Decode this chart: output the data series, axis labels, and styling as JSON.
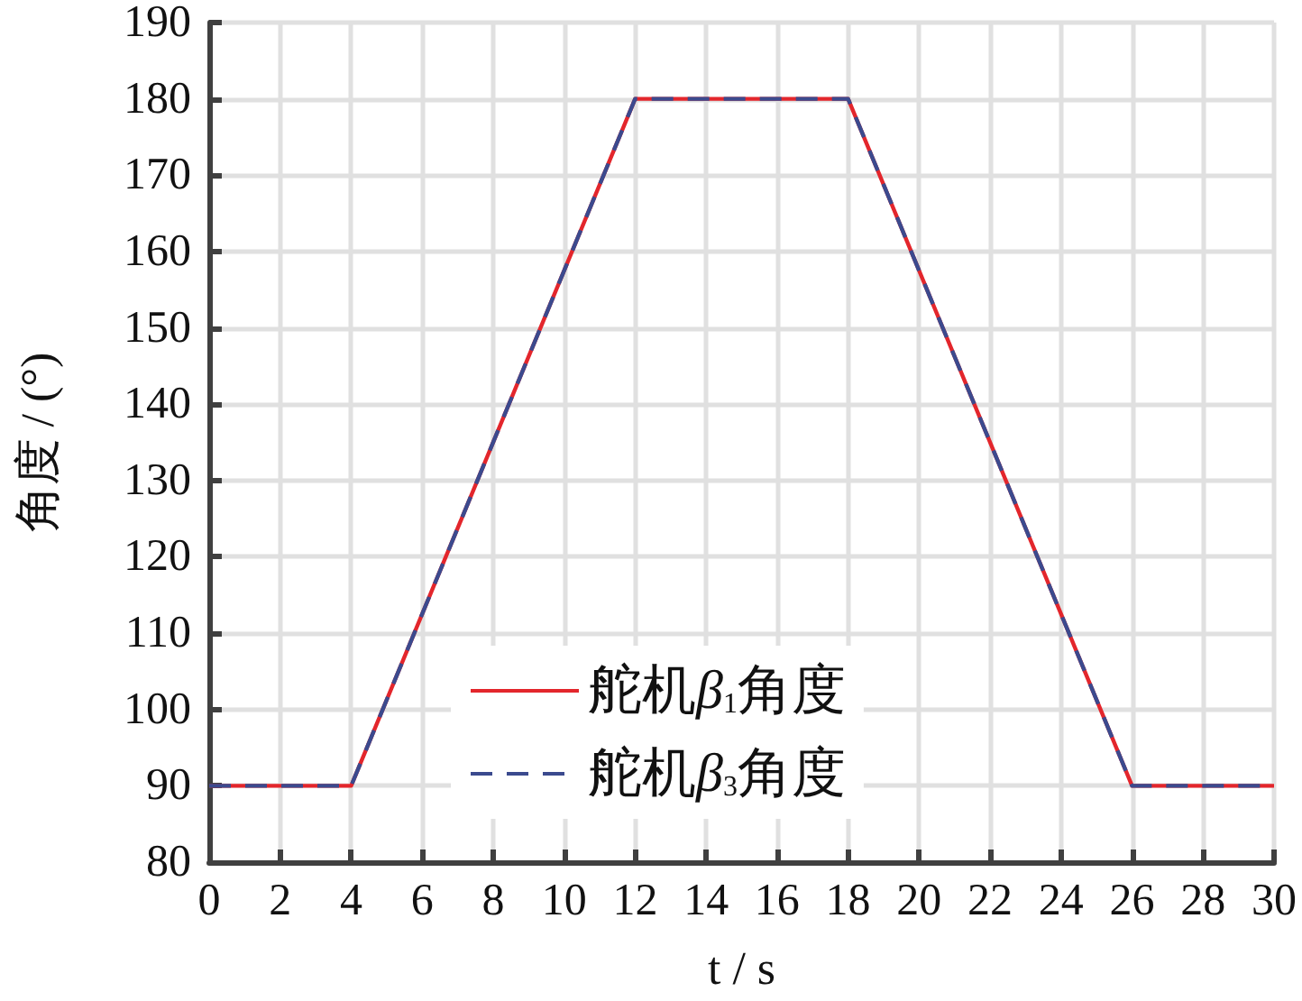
{
  "chart_data": {
    "type": "line",
    "xlabel": "t / s",
    "ylabel": "角度 / (°)",
    "x": [
      0,
      4,
      12,
      18,
      26,
      30
    ],
    "series": [
      {
        "name": "舵机β$_{1}$角度",
        "color": "#e3262c",
        "values": [
          90,
          90,
          180,
          180,
          90,
          90
        ],
        "line_style": "solid"
      },
      {
        "name": "舵机β$_{3}$角度",
        "color": "#3b4a8e",
        "values": [
          90,
          90,
          180,
          180,
          90,
          90
        ],
        "line_style": "dashed"
      }
    ],
    "xlim": [
      0,
      30
    ],
    "xticks": [
      0,
      2,
      4,
      6,
      8,
      10,
      12,
      14,
      16,
      18,
      20,
      22,
      24,
      26,
      28,
      30
    ],
    "ylim": [
      80,
      190
    ],
    "yticks": [
      80,
      90,
      100,
      110,
      120,
      130,
      140,
      150,
      160,
      170,
      180,
      190
    ],
    "grid": true,
    "legend": "bottom",
    "marker": "none"
  }
}
